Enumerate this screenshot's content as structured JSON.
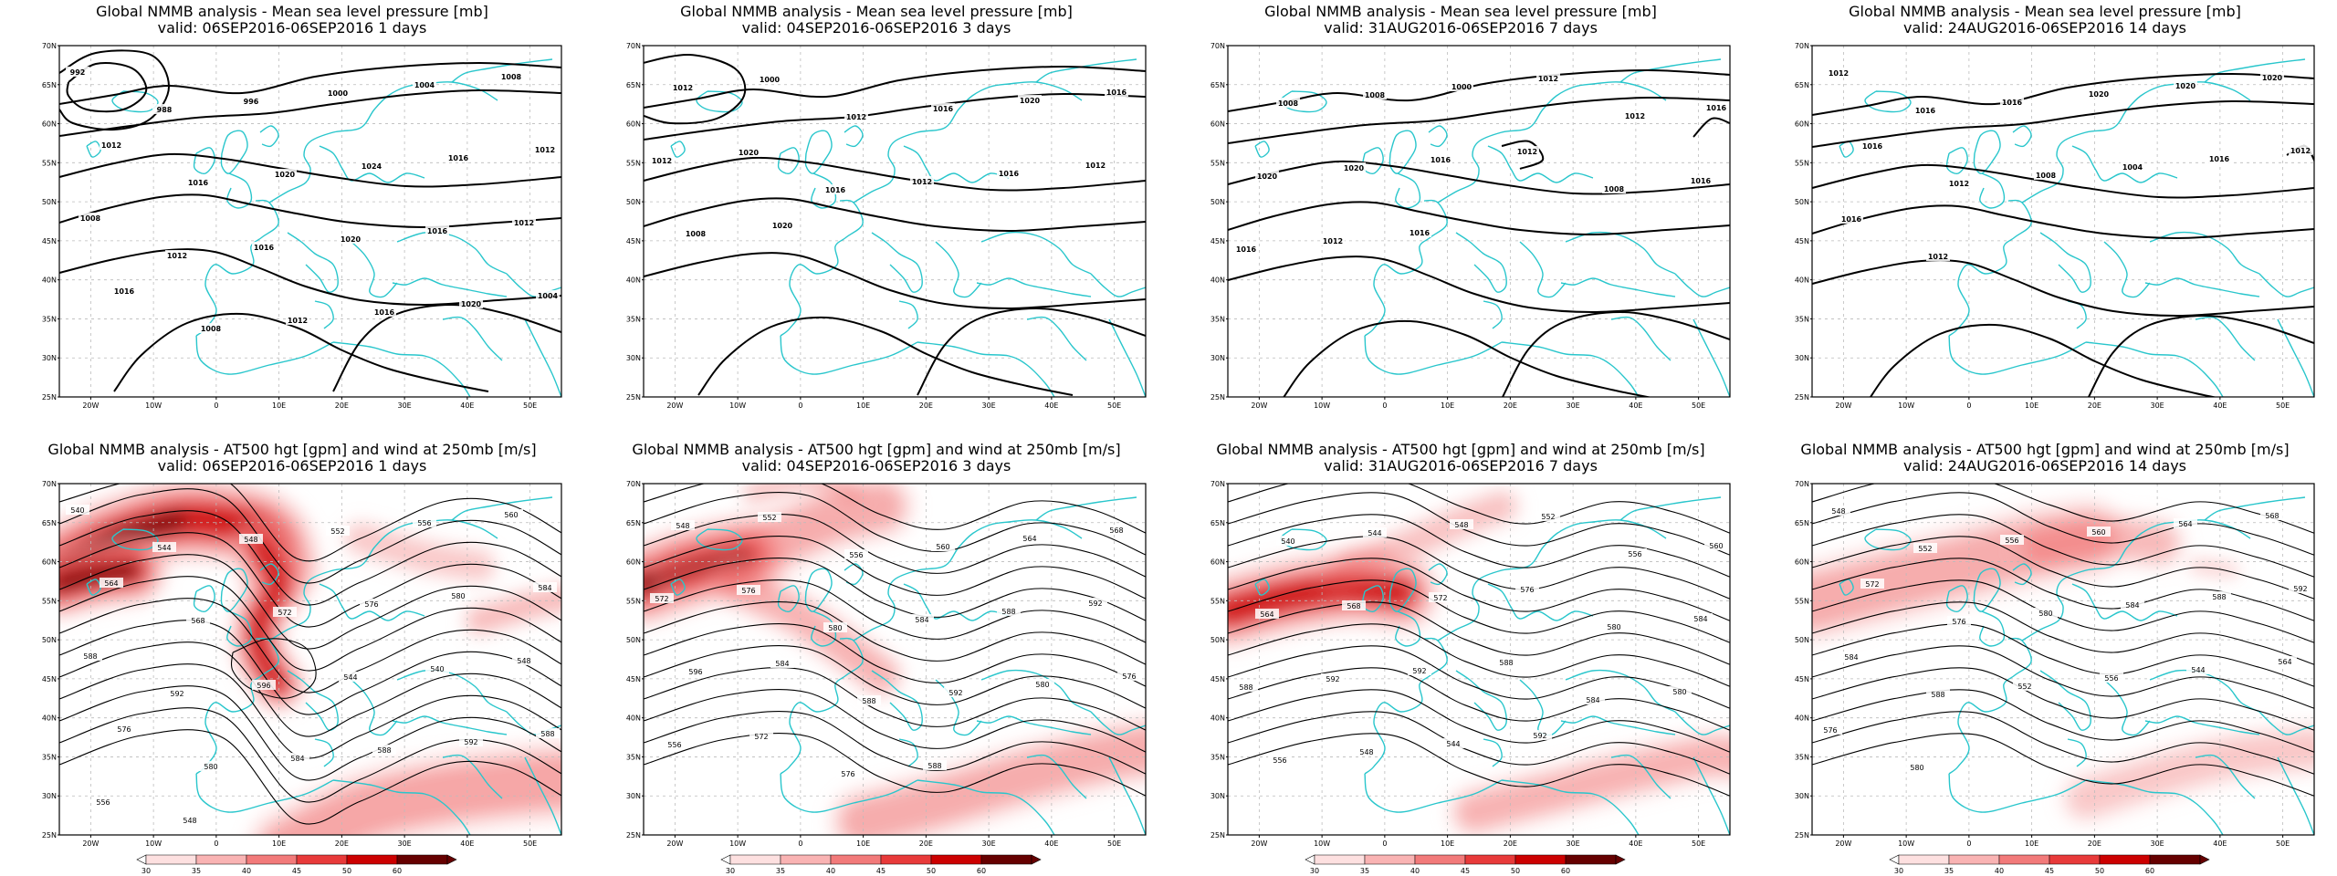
{
  "colors": {
    "coast": "#29c6cc",
    "contour": "#000000",
    "wind_scale": [
      "#fde0e0",
      "#f9b3b3",
      "#f27a7a",
      "#e83a3a",
      "#cc0000",
      "#660000"
    ]
  },
  "axes": {
    "lon_labels": [
      "20W",
      "10W",
      "0",
      "10E",
      "20E",
      "30E",
      "40E",
      "50E"
    ],
    "lat_labels": [
      "70N",
      "65N",
      "60N",
      "55N",
      "50N",
      "45N",
      "40N",
      "35N",
      "30N",
      "25N"
    ]
  },
  "colorbar": {
    "ticks": [
      "30",
      "35",
      "40",
      "45",
      "50",
      "60"
    ]
  },
  "panels": [
    {
      "id": "mslp-1d",
      "kind": "mslp",
      "title": "Global NMMB analysis - Mean sea level pressure [mb]",
      "subtitle": "valid: 06SEP2016-06SEP2016  1 days",
      "labels": [
        "992",
        "988",
        "996",
        "1000",
        "1004",
        "1008",
        "1012",
        "1016",
        "1020",
        "1024",
        "1016",
        "1012",
        "1008",
        "1012",
        "1016",
        "1020",
        "1016",
        "1012",
        "1016",
        "1008",
        "1012",
        "1016",
        "1020",
        "1004"
      ]
    },
    {
      "id": "mslp-3d",
      "kind": "mslp",
      "title": "Global NMMB analysis - Mean sea level pressure [mb]",
      "subtitle": "valid: 04SEP2016-06SEP2016  3 days",
      "labels": [
        "1012",
        "1000",
        "1012",
        "1016",
        "1020",
        "1016",
        "1012",
        "1020",
        "1016",
        "1012",
        "1016",
        "1012",
        "1008",
        "1020"
      ]
    },
    {
      "id": "mslp-7d",
      "kind": "mslp",
      "title": "Global NMMB analysis - Mean sea level pressure [mb]",
      "subtitle": "valid: 31AUG2016-06SEP2016  7 days",
      "labels": [
        "1008",
        "1008",
        "1000",
        "1012",
        "1012",
        "1016",
        "1020",
        "1020",
        "1016",
        "1012",
        "1008",
        "1016",
        "1016",
        "1012",
        "1016"
      ]
    },
    {
      "id": "mslp-14d",
      "kind": "mslp",
      "title": "Global NMMB analysis - Mean sea level pressure [mb]",
      "subtitle": "valid: 24AUG2016-06SEP2016  14 days",
      "labels": [
        "1012",
        "1016",
        "1016",
        "1020",
        "1020",
        "1020",
        "1016",
        "1012",
        "1008",
        "1004",
        "1016",
        "1012",
        "1016",
        "1012"
      ]
    },
    {
      "id": "z500-1d",
      "kind": "z500",
      "title": "Global NMMB analysis - AT500 hgt [gpm] and wind at 250mb [m/s]",
      "subtitle": "valid: 06SEP2016-06SEP2016  1 days",
      "labels": [
        "540",
        "544",
        "548",
        "552",
        "556",
        "560",
        "564",
        "568",
        "572",
        "576",
        "580",
        "584",
        "588",
        "592",
        "596",
        "544",
        "540",
        "548",
        "576",
        "580",
        "584",
        "588",
        "592",
        "588",
        "556",
        "548"
      ]
    },
    {
      "id": "z500-3d",
      "kind": "z500",
      "title": "Global NMMB analysis - AT500 hgt [gpm] and wind at 250mb [m/s]",
      "subtitle": "valid: 04SEP2016-06SEP2016  3 days",
      "labels": [
        "548",
        "552",
        "556",
        "560",
        "564",
        "568",
        "572",
        "576",
        "580",
        "584",
        "588",
        "592",
        "596",
        "584",
        "588",
        "592",
        "580",
        "576",
        "556",
        "572",
        "576",
        "588"
      ]
    },
    {
      "id": "z500-7d",
      "kind": "z500",
      "title": "Global NMMB analysis - AT500 hgt [gpm] and wind at 250mb [m/s]",
      "subtitle": "valid: 31AUG2016-06SEP2016  7 days",
      "labels": [
        "540",
        "544",
        "548",
        "552",
        "556",
        "560",
        "564",
        "568",
        "572",
        "576",
        "580",
        "584",
        "588",
        "592",
        "592",
        "588",
        "584",
        "580",
        "556",
        "548",
        "544",
        "592"
      ]
    },
    {
      "id": "z500-14d",
      "kind": "z500",
      "title": "Global NMMB analysis - AT500 hgt [gpm] and wind at 250mb [m/s]",
      "subtitle": "valid: 24AUG2016-06SEP2016  14 days",
      "labels": [
        "548",
        "552",
        "556",
        "560",
        "564",
        "568",
        "572",
        "576",
        "580",
        "584",
        "588",
        "592",
        "584",
        "588",
        "552",
        "556",
        "544",
        "564",
        "576",
        "580"
      ]
    }
  ]
}
